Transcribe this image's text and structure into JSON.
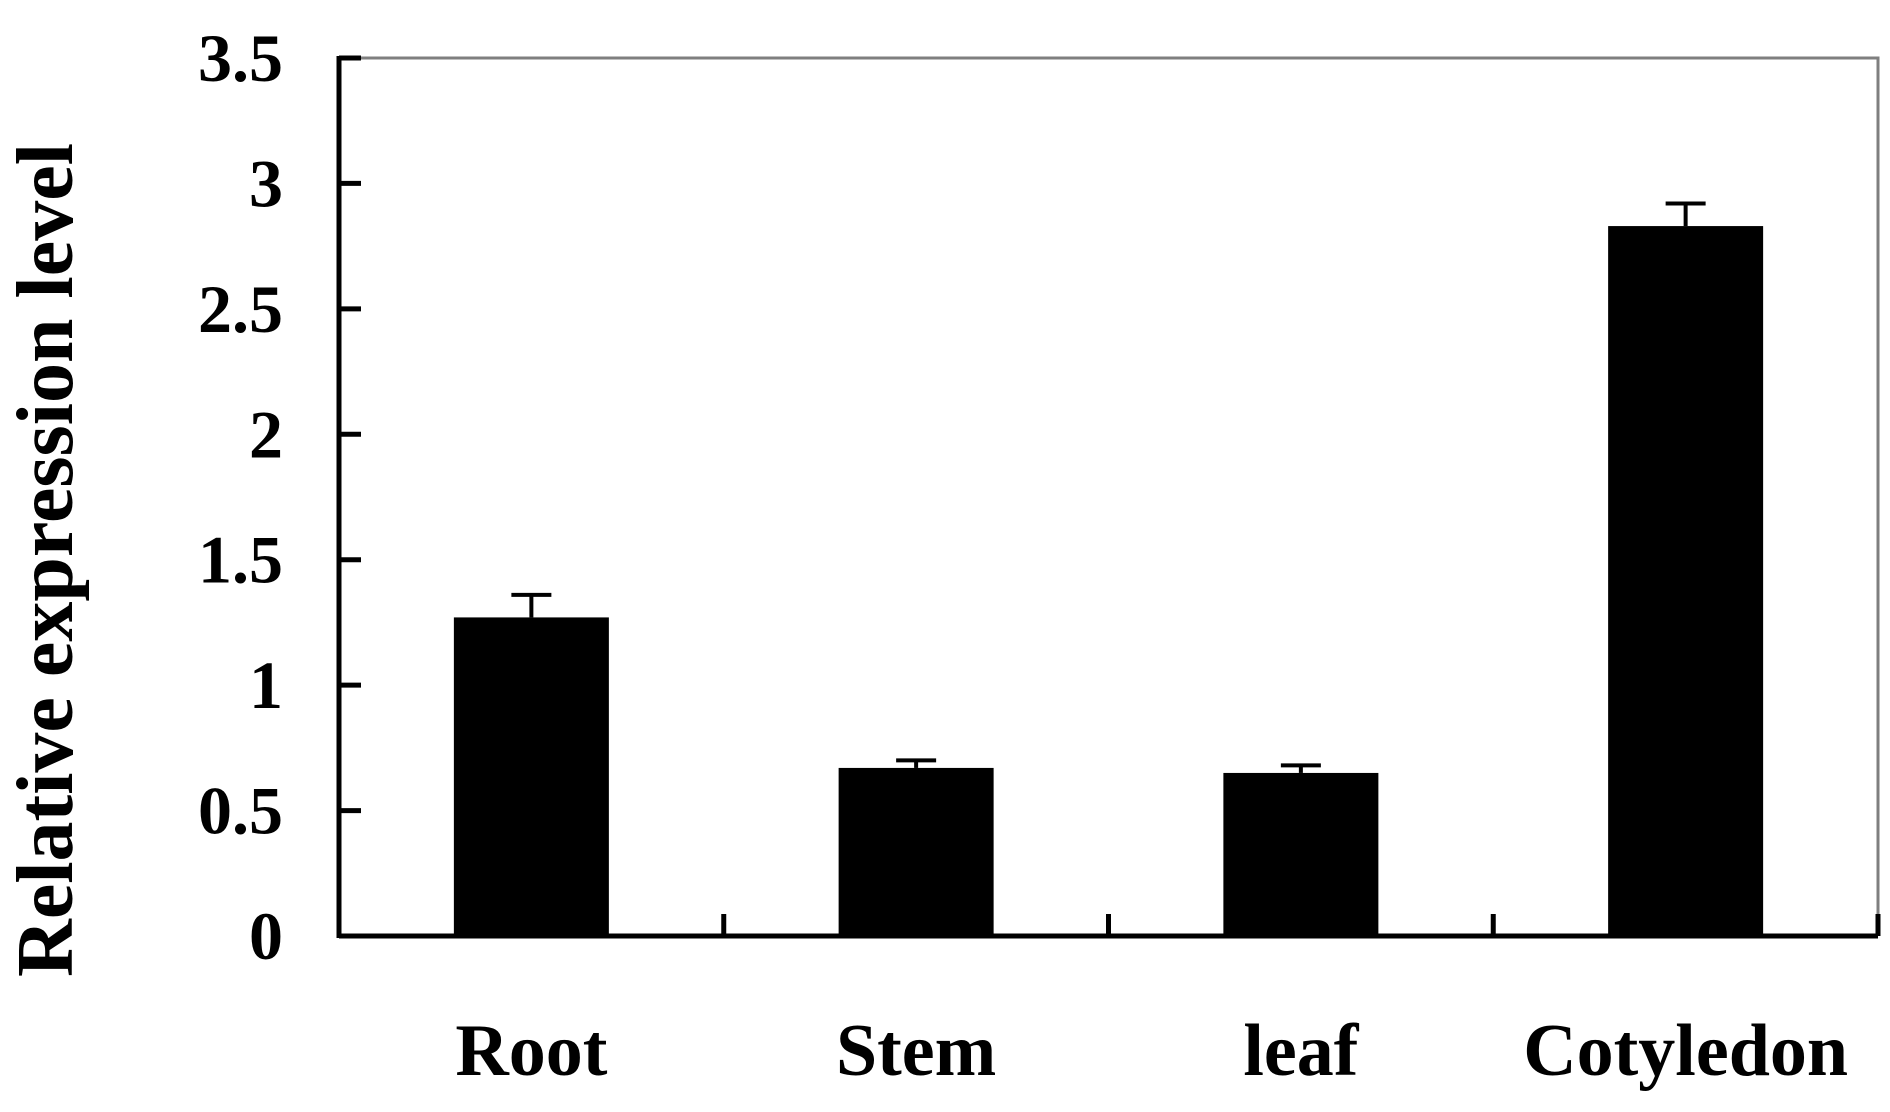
{
  "chart_data": {
    "type": "bar",
    "title": "",
    "xlabel": "",
    "ylabel": "Relative expression level",
    "categories": [
      "Root",
      "Stem",
      "leaf",
      "Cotyledon"
    ],
    "values": [
      1.27,
      0.67,
      0.65,
      2.83
    ],
    "errors": [
      0.09,
      0.03,
      0.03,
      0.09
    ],
    "ylim": [
      0,
      3.5
    ],
    "yticks": [
      "0",
      "0.5",
      "1",
      "1.5",
      "2",
      "2.5",
      "3",
      "3.5"
    ],
    "ytick_values": [
      0,
      0.5,
      1,
      1.5,
      2,
      2.5,
      3,
      3.5
    ],
    "grid": false,
    "legend": "none",
    "bar_color": "#000000",
    "frame_color": "#7f7f7f"
  }
}
